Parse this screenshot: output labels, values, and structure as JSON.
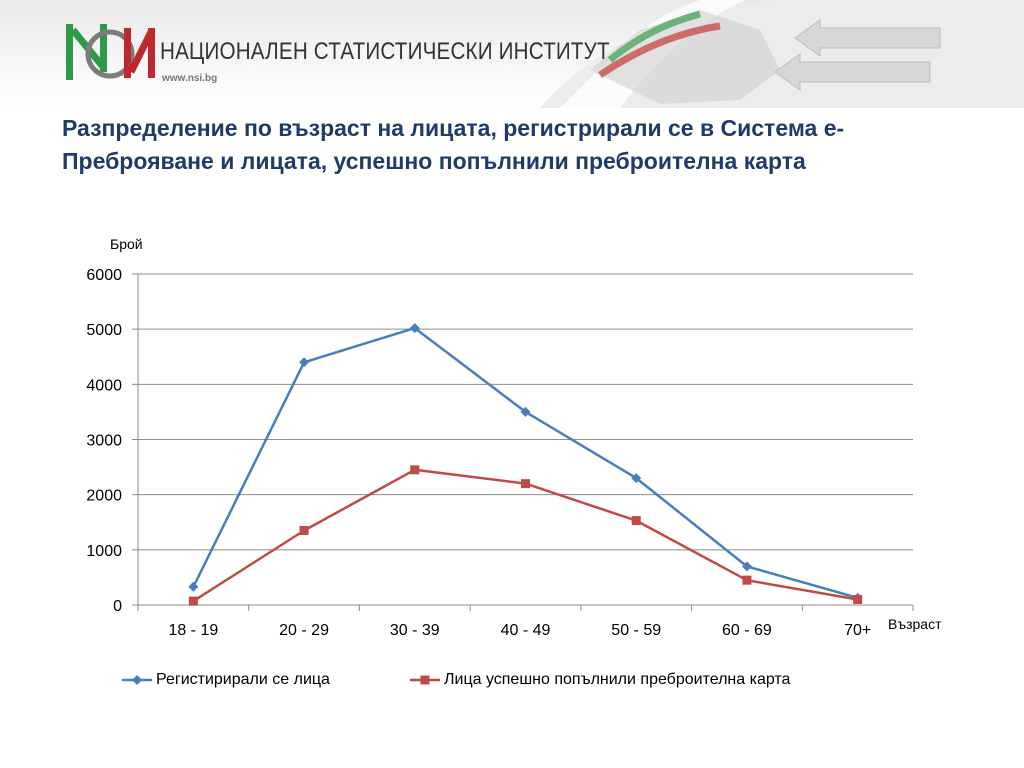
{
  "header": {
    "org_name": "НАЦИОНАЛЕН СТАТИСТИЧЕСКИ ИНСТИТУТ",
    "website": "www.nsi.bg",
    "brand_colors": {
      "green": "#2e9a47",
      "red": "#c0282f",
      "gray": "#7c7c7c"
    }
  },
  "title": "Разпределение по възраст на лицата, регистрирали се в Система е-Преброяване и лицата, успешно попълнили преброителна карта",
  "chart_data": {
    "type": "line",
    "ylabel": "Брой",
    "xlabel": "Възраст",
    "categories": [
      "18 - 19",
      "20 - 29",
      "30 - 39",
      "40 - 49",
      "50 - 59",
      "60 - 69",
      "70+"
    ],
    "ylim": [
      0,
      6000
    ],
    "yticks": [
      0,
      1000,
      2000,
      3000,
      4000,
      5000,
      6000
    ],
    "grid": true,
    "legend": "bottom",
    "series": [
      {
        "name": "Регистирирали се лица",
        "color": "#4a7ebb",
        "marker": "diamond",
        "values": [
          330,
          4400,
          5020,
          3500,
          2300,
          700,
          130
        ]
      },
      {
        "name": "Лица успешно попълнили преброителна карта",
        "color": "#be4b48",
        "marker": "square",
        "values": [
          70,
          1350,
          2450,
          2200,
          1530,
          450,
          100
        ]
      }
    ]
  }
}
